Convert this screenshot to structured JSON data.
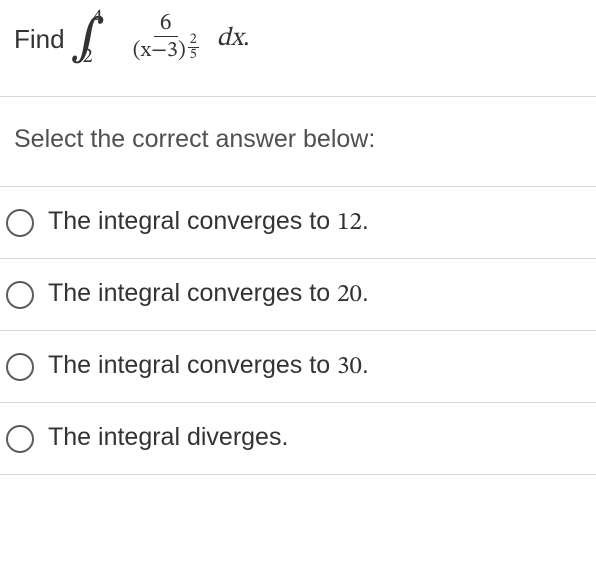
{
  "question": {
    "stem_prefix": "Find",
    "integral": {
      "lower": "2",
      "upper": "4",
      "numerator": "6",
      "denom_base": "(x−3)",
      "denom_exp_num": "2",
      "denom_exp_den": "5",
      "differential": "dx",
      "suffix_punct": "."
    }
  },
  "prompt": "Select the correct answer below:",
  "options": [
    {
      "text_prefix": "The integral converges to ",
      "number": "12",
      "text_suffix": "."
    },
    {
      "text_prefix": "The integral converges to ",
      "number": "20",
      "text_suffix": "."
    },
    {
      "text_prefix": "The integral converges to ",
      "number": "30",
      "text_suffix": "."
    },
    {
      "text_prefix": "The integral diverges.",
      "number": "",
      "text_suffix": ""
    }
  ],
  "style": {
    "text_color": "#333333",
    "prompt_color": "#505050",
    "divider_color": "#d9d9d9",
    "radio_border": "#5a5a5a",
    "background": "#ffffff",
    "font_size_body": 25,
    "font_size_stem": 26
  }
}
